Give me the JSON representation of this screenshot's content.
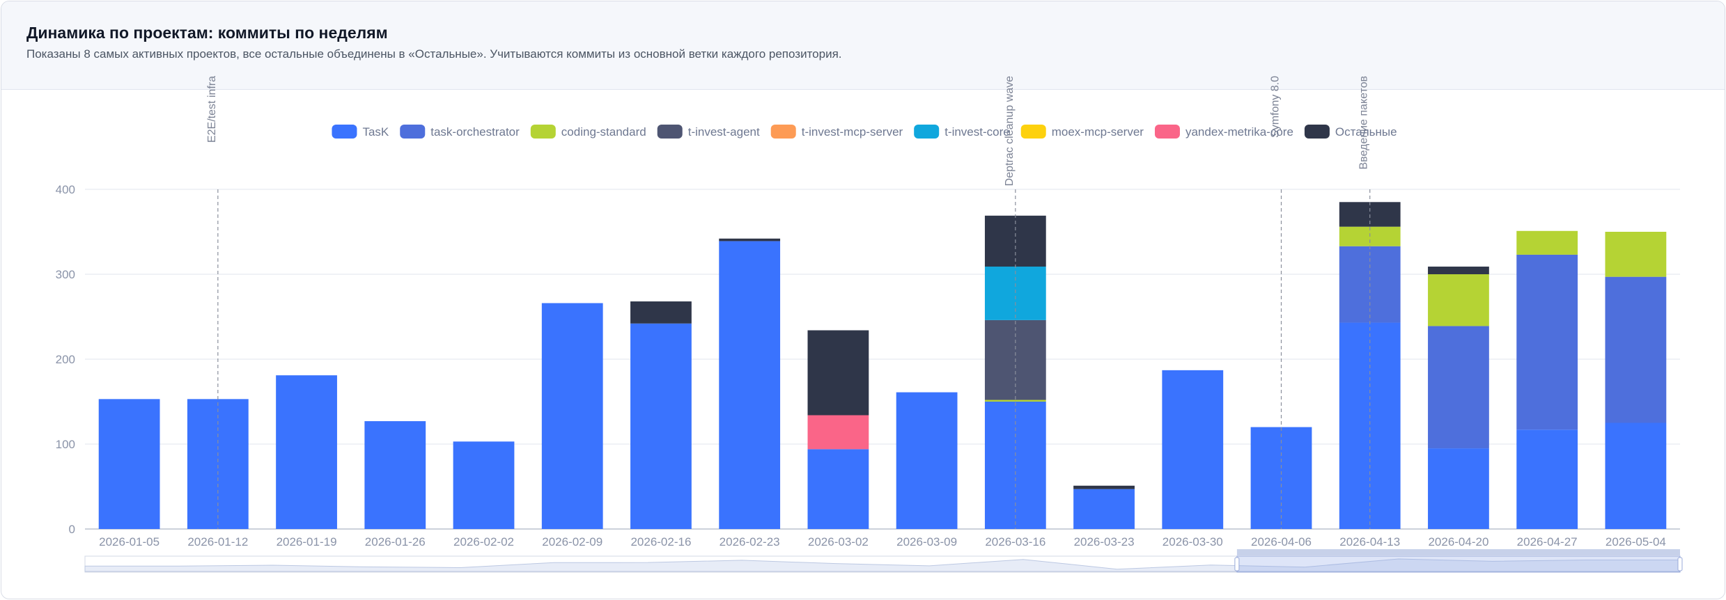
{
  "header": {
    "title": "Динамика по проектам: коммиты по неделям",
    "subtitle": "Показаны 8 самых активных проектов, все остальные объединены в «Остальные». Учитываются коммиты из основной ветки каждого репозитория."
  },
  "colors": {
    "TasK": "#3a73fe",
    "task-orchestrator": "#4e6fdc",
    "coding-standard": "#b5d334",
    "t-invest-agent": "#4e5572",
    "t-invest-mcp-server": "#fd9b55",
    "t-invest-core": "#10a7dd",
    "moex-mcp-server": "#fdd10e",
    "yandex-metrika-core": "#fa6588",
    "Остальные": "#2f3649"
  },
  "chart_data": {
    "type": "bar",
    "stacked": true,
    "categories": [
      "2026-01-05",
      "2026-01-12",
      "2026-01-19",
      "2026-01-26",
      "2026-02-02",
      "2026-02-09",
      "2026-02-16",
      "2026-02-23",
      "2026-03-02",
      "2026-03-09",
      "2026-03-16",
      "2026-03-23",
      "2026-03-30",
      "2026-04-06",
      "2026-04-13",
      "2026-04-20",
      "2026-04-27",
      "2026-05-04"
    ],
    "series": [
      {
        "name": "TasK",
        "values": [
          153,
          153,
          181,
          127,
          103,
          266,
          242,
          339,
          94,
          161,
          150,
          47,
          187,
          120,
          243,
          95,
          117,
          125
        ]
      },
      {
        "name": "task-orchestrator",
        "values": [
          0,
          0,
          0,
          0,
          0,
          0,
          0,
          0,
          0,
          0,
          0,
          0,
          0,
          0,
          90,
          144,
          206,
          172
        ]
      },
      {
        "name": "coding-standard",
        "values": [
          0,
          0,
          0,
          0,
          0,
          0,
          0,
          0,
          0,
          0,
          2,
          0,
          0,
          0,
          23,
          61,
          28,
          53
        ]
      },
      {
        "name": "t-invest-agent",
        "values": [
          0,
          0,
          0,
          0,
          0,
          0,
          0,
          0,
          0,
          0,
          94,
          0,
          0,
          0,
          0,
          0,
          0,
          0
        ]
      },
      {
        "name": "t-invest-mcp-server",
        "values": [
          0,
          0,
          0,
          0,
          0,
          0,
          0,
          0,
          0,
          0,
          0,
          0,
          0,
          0,
          0,
          0,
          0,
          0
        ]
      },
      {
        "name": "t-invest-core",
        "values": [
          0,
          0,
          0,
          0,
          0,
          0,
          0,
          0,
          0,
          0,
          63,
          0,
          0,
          0,
          0,
          0,
          0,
          0
        ]
      },
      {
        "name": "moex-mcp-server",
        "values": [
          0,
          0,
          0,
          0,
          0,
          0,
          0,
          0,
          0,
          0,
          0,
          0,
          0,
          0,
          0,
          0,
          0,
          0
        ]
      },
      {
        "name": "yandex-metrika-core",
        "values": [
          0,
          0,
          0,
          0,
          0,
          0,
          0,
          0,
          40,
          0,
          0,
          0,
          0,
          0,
          0,
          0,
          0,
          0
        ]
      },
      {
        "name": "Остальные",
        "values": [
          0,
          0,
          0,
          0,
          0,
          0,
          26,
          3,
          100,
          0,
          60,
          4,
          0,
          0,
          29,
          9,
          0,
          0
        ]
      }
    ],
    "yticks": [
      0,
      100,
      200,
      300,
      400
    ],
    "ylim": [
      0,
      400
    ],
    "grid": true,
    "legend_position": "top",
    "annotations": [
      {
        "category": "2026-01-12",
        "label": "E2E/test infra"
      },
      {
        "category": "2026-03-16",
        "label": "Deptrac cleanup wave"
      },
      {
        "category": "2026-04-06",
        "label": "Symfony 8.0"
      },
      {
        "category": "2026-04-13",
        "label": "Введение пакетов"
      }
    ],
    "data_zoom": {
      "start_category": "2026-04-06",
      "end_category": "2026-05-04"
    }
  }
}
